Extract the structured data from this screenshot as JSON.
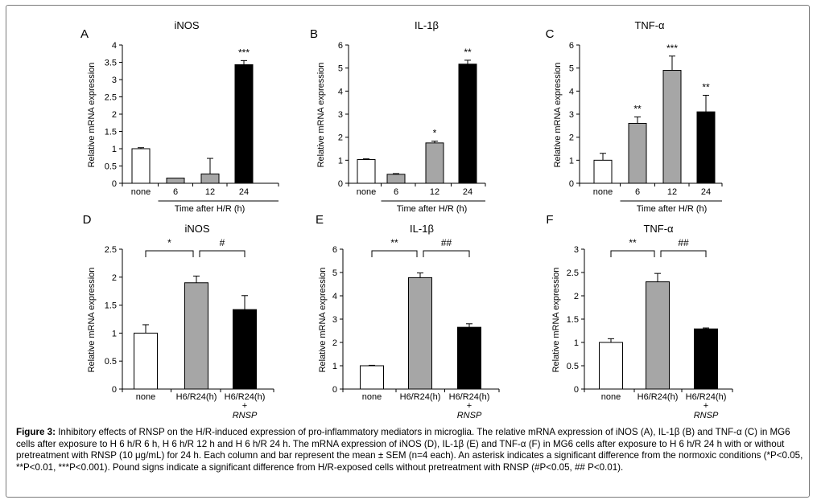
{
  "figure_label": "Figure 3:",
  "caption_text": "Inhibitory effects of RNSP on the H/R-induced expression of pro-inflammatory mediators in microglia. The relative mRNA expression of iNOS (A), IL-1β (B) and TNF-α (C) in MG6 cells after exposure to H 6 h/R 6 h, H 6 h/R 12 h and H 6 h/R 24 h. The mRNA expression of iNOS (D), IL-1β (E) and TNF-α (F) in MG6 cells after exposure to H 6 h/R 24 h with or without pretreatment with RNSP (10 μg/mL) for 24 h. Each column and bar represent the mean ± SEM (n=4 each). An asterisk indicates a significant difference from the normoxic conditions (*P<0.05, **P<0.01, ***P<0.001). Pound signs indicate a significant difference from H/R-exposed cells without pretreatment with RNSP (#P<0.05, ## P<0.01).",
  "colors": {
    "none": "#ffffff",
    "mid": "#a6a6a6",
    "dark": "#000000"
  },
  "chart_data": [
    {
      "type": "bar",
      "panel": "A",
      "title": "iNOS",
      "ylabel": "Relative mRNA expression",
      "xlabel": "Time after H/R (h)",
      "ylim": [
        0,
        4
      ],
      "yticks": [
        "0",
        "0.5",
        "1",
        "1.5",
        "2",
        "2.5",
        "3",
        "3.5",
        "4"
      ],
      "categories": [
        "none",
        "6",
        "12",
        "24"
      ],
      "values": [
        1.0,
        0.15,
        0.27,
        3.43
      ],
      "errors": [
        0.03,
        0.0,
        0.45,
        0.12
      ],
      "fills": [
        "none",
        "mid",
        "mid",
        "dark"
      ],
      "annotations": [
        "",
        "",
        "",
        "***"
      ]
    },
    {
      "type": "bar",
      "panel": "B",
      "title": "IL-1β",
      "ylabel": "Relative mRNA expression",
      "xlabel": "Time after H/R (h)",
      "ylim": [
        0,
        6
      ],
      "yticks": [
        "0",
        "1",
        "2",
        "3",
        "4",
        "5",
        "6"
      ],
      "categories": [
        "none",
        "6",
        "12",
        "24"
      ],
      "values": [
        1.03,
        0.39,
        1.75,
        5.17
      ],
      "errors": [
        0.03,
        0.03,
        0.08,
        0.17
      ],
      "fills": [
        "none",
        "mid",
        "mid",
        "dark"
      ],
      "annotations": [
        "",
        "",
        "*",
        "**"
      ]
    },
    {
      "type": "bar",
      "panel": "C",
      "title": "TNF-α",
      "ylabel": "Relative mRNA expression",
      "xlabel": "Time after H/R (h)",
      "ylim": [
        0,
        6
      ],
      "yticks": [
        "0",
        "1",
        "2",
        "3",
        "4",
        "5",
        "6"
      ],
      "categories": [
        "none",
        "6",
        "12",
        "24"
      ],
      "values": [
        1.0,
        2.6,
        4.9,
        3.1
      ],
      "errors": [
        0.3,
        0.28,
        0.62,
        0.72
      ],
      "fills": [
        "none",
        "mid",
        "mid",
        "dark"
      ],
      "annotations": [
        "",
        "**",
        "***",
        "**"
      ]
    },
    {
      "type": "bar",
      "panel": "D",
      "title": "iNOS",
      "ylabel": "Relative mRNA expression",
      "ylim": [
        0,
        2.5
      ],
      "yticks": [
        "0",
        "0.5",
        "1",
        "1.5",
        "2",
        "2.5"
      ],
      "categories": [
        "none",
        "H6/R24(h)",
        "H6/R24(h)"
      ],
      "sublabels": [
        "",
        "",
        "+"
      ],
      "sublabels2": [
        "",
        "",
        "RNSP"
      ],
      "values": [
        1.0,
        1.9,
        1.42
      ],
      "errors": [
        0.15,
        0.12,
        0.25
      ],
      "fills": [
        "none",
        "mid",
        "dark"
      ],
      "brackets": [
        "*",
        "#"
      ]
    },
    {
      "type": "bar",
      "panel": "E",
      "title": "IL-1β",
      "ylabel": "Relative mRNA expression",
      "ylim": [
        0,
        6
      ],
      "yticks": [
        "0",
        "1",
        "2",
        "3",
        "4",
        "5",
        "6"
      ],
      "categories": [
        "none",
        "H6/R24(h)",
        "H6/R24(h)"
      ],
      "sublabels": [
        "",
        "",
        "+"
      ],
      "sublabels2": [
        "",
        "",
        "RNSP"
      ],
      "values": [
        1.0,
        4.78,
        2.65
      ],
      "errors": [
        0.02,
        0.2,
        0.15
      ],
      "fills": [
        "none",
        "mid",
        "dark"
      ],
      "brackets": [
        "**",
        "##"
      ]
    },
    {
      "type": "bar",
      "panel": "F",
      "title": "TNF-α",
      "ylabel": "Relative mRNA expression",
      "ylim": [
        0,
        3
      ],
      "yticks": [
        "0",
        "0.5",
        "1",
        "1.5",
        "2",
        "2.5",
        "3"
      ],
      "categories": [
        "none",
        "H6/R24(h)",
        "H6/R24(h)"
      ],
      "sublabels": [
        "",
        "",
        "+"
      ],
      "sublabels2": [
        "",
        "",
        "RNSP"
      ],
      "values": [
        1.0,
        2.3,
        1.29
      ],
      "errors": [
        0.08,
        0.18,
        0.02
      ],
      "fills": [
        "none",
        "mid",
        "dark"
      ],
      "brackets": [
        "**",
        "##"
      ]
    }
  ]
}
